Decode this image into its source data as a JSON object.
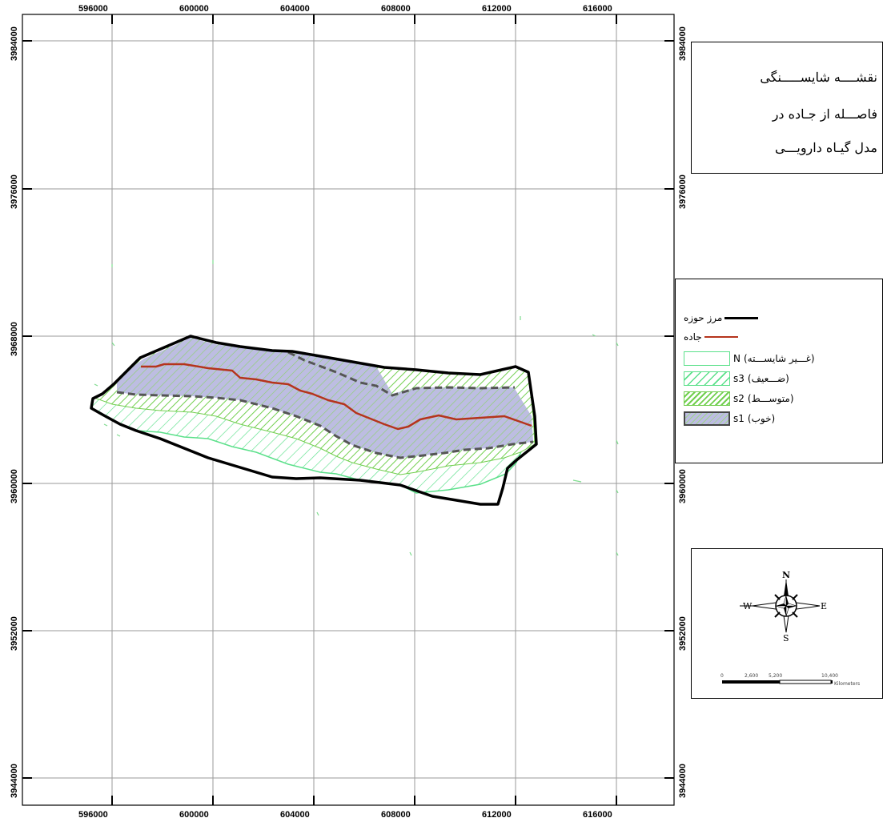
{
  "map": {
    "x_ticks": [
      "596000",
      "600000",
      "604000",
      "608000",
      "612000",
      "616000"
    ],
    "y_ticks": [
      "3984000",
      "3976000",
      "3968000",
      "3960000",
      "3952000",
      "3944000"
    ]
  },
  "title": {
    "lines": [
      "نقشــــه شايســـــنگی",
      "فاصـــله از جـاده در",
      "مدل گيـاه دارويـــی"
    ]
  },
  "legend": {
    "items": [
      {
        "id": "boundary",
        "label": "مرز حوزه",
        "color": "#000000"
      },
      {
        "id": "road",
        "label": "جاده",
        "color": "#b5341c"
      },
      {
        "id": "n",
        "code": "N",
        "label": "(غـــير شايســـته)",
        "color": "#5be08a"
      },
      {
        "id": "s3",
        "code": "s3",
        "label": "(ضـــعيف)",
        "color": "#5be08a"
      },
      {
        "id": "s2",
        "code": "s2",
        "label": "(متوســـط)",
        "color": "#7ed65a"
      },
      {
        "id": "s1",
        "code": "s1",
        "label": "(خوب)",
        "color": "#b9b5dc"
      }
    ]
  },
  "compass": {
    "north": "N",
    "south": "S",
    "east": "E",
    "west": "W"
  },
  "scale_bar": {
    "labels": [
      "0",
      "2,600",
      "5,200",
      "10,400"
    ],
    "unit": "Kilometers"
  }
}
